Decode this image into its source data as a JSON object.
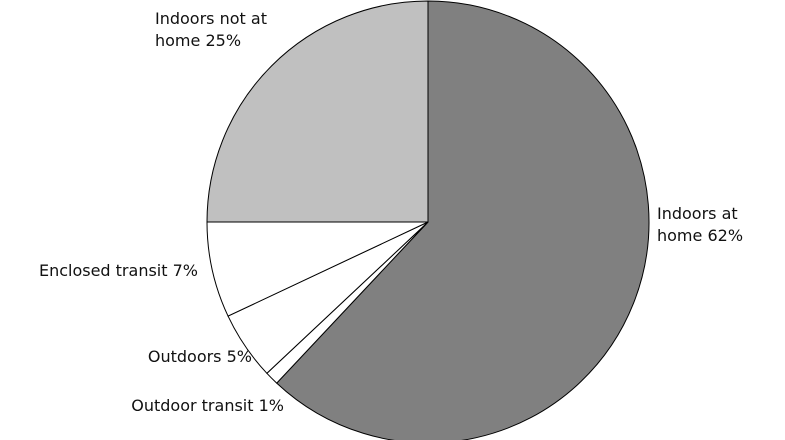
{
  "chart_data": {
    "type": "pie",
    "categories": [
      "Indoors at home",
      "Outdoor transit",
      "Outdoors",
      "Enclosed transit",
      "Indoors not at home"
    ],
    "values": [
      62,
      1,
      5,
      7,
      25
    ],
    "value_labels": [
      "62%",
      "1%",
      "5%",
      "7%",
      "25%"
    ],
    "colors": [
      "#808080",
      "#ffffff",
      "#ffffff",
      "#ffffff",
      "#c0c0c0"
    ]
  }
}
